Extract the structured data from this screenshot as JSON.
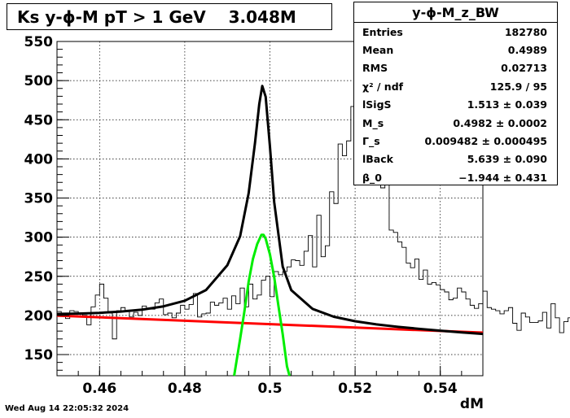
{
  "title": "Ks y-ϕ-M pT > 1 GeV    3.048M",
  "footer": "Wed Aug 14 22:05:32 2024",
  "stats": {
    "name": "y-ϕ-M_z_BW",
    "rows": [
      {
        "label": "Entries",
        "value": "182780"
      },
      {
        "label": "Mean",
        "value": "0.4989"
      },
      {
        "label": "RMS",
        "value": "0.02713"
      },
      {
        "label": "χ² / ndf",
        "value": "125.9 / 95"
      },
      {
        "label": "lSigS",
        "value": "1.513 ± 0.039"
      },
      {
        "label": "M_s",
        "value": "0.4982 ± 0.0002"
      },
      {
        "label": "Γ_s",
        "value": "0.009482 ± 0.000495"
      },
      {
        "label": "lBack",
        "value": "5.639 ± 0.090"
      },
      {
        "label": "β_0",
        "value": "−1.944 ± 0.431"
      }
    ]
  },
  "chart_data": {
    "type": "line",
    "xlabel": "dM",
    "xlim": [
      0.45,
      0.55
    ],
    "ylim": [
      123,
      550
    ],
    "xticks": [
      "0.46",
      "0.48",
      "0.5",
      "0.52",
      "0.54"
    ],
    "yticks": [
      "150",
      "200",
      "250",
      "300",
      "350",
      "400",
      "450",
      "500",
      "550"
    ],
    "grid": true,
    "histogram": {
      "bin_width": 0.001,
      "x_start": 0.45,
      "counts": [
        205,
        203,
        196,
        206,
        205,
        202,
        200,
        188,
        211,
        226,
        240,
        222,
        203,
        170,
        206,
        210,
        205,
        198,
        204,
        200,
        212,
        209,
        208,
        216,
        221,
        201,
        203,
        197,
        203,
        213,
        208,
        214,
        228,
        198,
        202,
        203,
        217,
        213,
        216,
        222,
        208,
        225,
        215,
        235,
        211,
        240,
        221,
        226,
        245,
        250,
        224,
        256,
        252,
        256,
        262,
        271,
        270,
        264,
        282,
        302,
        262,
        328,
        275,
        289,
        358,
        343,
        419,
        404,
        423,
        467,
        507,
        493,
        528,
        455,
        429,
        392,
        363,
        371,
        309,
        306,
        294,
        287,
        267,
        261,
        272,
        246,
        258,
        240,
        242,
        239,
        233,
        230,
        220,
        222,
        235,
        230,
        221,
        213,
        209,
        215,
        231,
        210,
        208,
        206,
        202,
        206,
        210,
        190,
        181,
        203,
        198,
        191,
        191,
        193,
        204,
        184,
        215,
        197,
        178,
        192,
        197,
        218,
        214,
        185,
        200,
        188,
        182,
        168,
        190,
        219,
        208,
        177,
        197,
        206,
        194,
        202,
        185,
        195,
        185,
        186,
        187,
        197,
        204,
        168,
        188,
        186,
        188,
        186,
        205,
        188,
        185,
        182,
        183,
        174,
        219,
        186,
        165,
        190,
        190,
        187,
        213,
        192,
        160,
        168,
        178,
        195,
        186,
        178,
        180,
        210,
        176,
        201,
        176,
        187,
        182,
        162,
        185,
        177,
        180,
        189,
        167
      ]
    },
    "series": [
      {
        "color": "#000000",
        "points": [
          [
            0.45,
            201.9
          ],
          [
            0.455,
            202.4
          ],
          [
            0.46,
            203.3
          ],
          [
            0.465,
            204.9
          ],
          [
            0.47,
            207.4
          ],
          [
            0.475,
            211.6
          ],
          [
            0.48,
            218.8
          ],
          [
            0.485,
            232.5
          ],
          [
            0.49,
            264.2
          ],
          [
            0.493,
            301.2
          ],
          [
            0.495,
            356.1
          ],
          [
            0.4965,
            420.7
          ],
          [
            0.4975,
            470.3
          ],
          [
            0.4982,
            493.2
          ],
          [
            0.499,
            479.3
          ],
          [
            0.5,
            415.8
          ],
          [
            0.501,
            344.8
          ],
          [
            0.503,
            262.3
          ],
          [
            0.505,
            232.4
          ],
          [
            0.51,
            208.4
          ],
          [
            0.515,
            198.3
          ],
          [
            0.52,
            192.6
          ],
          [
            0.525,
            188.6
          ],
          [
            0.53,
            185.5
          ],
          [
            0.535,
            182.9
          ],
          [
            0.54,
            180.5
          ],
          [
            0.545,
            178.3
          ],
          [
            0.55,
            176.4
          ]
        ]
      },
      {
        "color": "#ff0000",
        "points": [
          [
            0.45,
            199.8
          ],
          [
            0.55,
            178.0
          ]
        ]
      },
      {
        "color": "#00ee00",
        "points": [
          [
            0.4916,
            110
          ],
          [
            0.493,
            170
          ],
          [
            0.494,
            205
          ],
          [
            0.495,
            243
          ],
          [
            0.496,
            272
          ],
          [
            0.497,
            291
          ],
          [
            0.498,
            303
          ],
          [
            0.4985,
            303
          ],
          [
            0.499,
            298
          ],
          [
            0.5,
            278
          ],
          [
            0.501,
            249
          ],
          [
            0.502,
            212
          ],
          [
            0.503,
            176
          ],
          [
            0.504,
            135
          ],
          [
            0.5046,
            110
          ]
        ]
      }
    ]
  }
}
